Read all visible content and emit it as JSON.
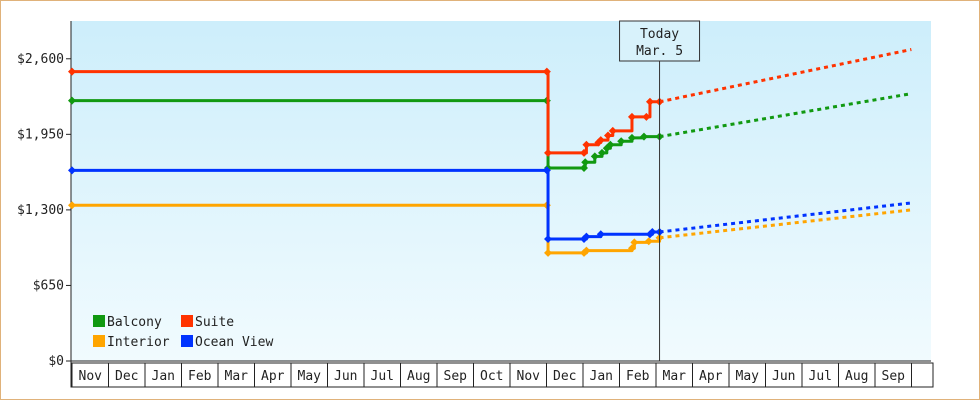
{
  "chart_data": {
    "type": "line",
    "title": "",
    "xlabel": "",
    "ylabel": "",
    "ylim": [
      0,
      2925
    ],
    "y_ticks": [
      {
        "value": 0,
        "label": "$0"
      },
      {
        "value": 650,
        "label": "$650"
      },
      {
        "value": 1300,
        "label": "$1,300"
      },
      {
        "value": 1950,
        "label": "$1,950"
      },
      {
        "value": 2600,
        "label": "$2,600"
      }
    ],
    "x_range": [
      "2023-11-01",
      "2025-10-01"
    ],
    "x_ticks": [
      "Nov",
      "Dec",
      "Jan",
      "Feb",
      "Mar",
      "Apr",
      "May",
      "Jun",
      "Jul",
      "Aug",
      "Sep",
      "Oct",
      "Nov",
      "Dec",
      "Jan",
      "Feb",
      "Mar",
      "Apr",
      "May",
      "Jun",
      "Jul",
      "Aug",
      "Sep"
    ],
    "grid": false,
    "legend_position": "bottom-left",
    "today": {
      "title": "Today",
      "label": "Mar. 5",
      "date": "2025-03-05"
    },
    "series": [
      {
        "name": "Balcony",
        "color": "#119911",
        "points": [
          [
            "2023-11-01",
            2240
          ],
          [
            "2024-12-01",
            2240
          ],
          [
            "2024-12-02",
            1660
          ],
          [
            "2025-01-01",
            1660
          ],
          [
            "2025-01-02",
            1710
          ],
          [
            "2025-01-10",
            1760
          ],
          [
            "2025-01-16",
            1790
          ],
          [
            "2025-01-20",
            1830
          ],
          [
            "2025-01-23",
            1860
          ],
          [
            "2025-02-01",
            1890
          ],
          [
            "2025-02-10",
            1920
          ],
          [
            "2025-02-20",
            1930
          ],
          [
            "2025-03-05",
            1930
          ]
        ],
        "forecast": [
          [
            "2025-03-05",
            1930
          ],
          [
            "2025-10-01",
            2300
          ]
        ]
      },
      {
        "name": "Suite",
        "color": "#ff3300",
        "points": [
          [
            "2023-11-01",
            2490
          ],
          [
            "2024-12-01",
            2490
          ],
          [
            "2024-12-02",
            1790
          ],
          [
            "2025-01-01",
            1790
          ],
          [
            "2025-01-03",
            1860
          ],
          [
            "2025-01-13",
            1880
          ],
          [
            "2025-01-15",
            1900
          ],
          [
            "2025-01-21",
            1940
          ],
          [
            "2025-01-25",
            1980
          ],
          [
            "2025-02-10",
            2100
          ],
          [
            "2025-02-22",
            2100
          ],
          [
            "2025-02-25",
            2230
          ],
          [
            "2025-03-05",
            2230
          ]
        ],
        "forecast": [
          [
            "2025-03-05",
            2230
          ],
          [
            "2025-10-01",
            2680
          ]
        ]
      },
      {
        "name": "Interior",
        "color": "#ffa500",
        "points": [
          [
            "2023-11-01",
            1340
          ],
          [
            "2024-12-01",
            1340
          ],
          [
            "2024-12-02",
            930
          ],
          [
            "2025-01-01",
            930
          ],
          [
            "2025-01-03",
            950
          ],
          [
            "2025-02-10",
            970
          ],
          [
            "2025-02-12",
            1020
          ],
          [
            "2025-02-24",
            1030
          ],
          [
            "2025-03-05",
            1060
          ]
        ],
        "forecast": [
          [
            "2025-03-05",
            1060
          ],
          [
            "2025-10-01",
            1300
          ]
        ]
      },
      {
        "name": "Ocean View",
        "color": "#0033ff",
        "points": [
          [
            "2023-11-01",
            1640
          ],
          [
            "2024-12-01",
            1640
          ],
          [
            "2024-12-02",
            1050
          ],
          [
            "2025-01-01",
            1050
          ],
          [
            "2025-01-03",
            1070
          ],
          [
            "2025-01-15",
            1090
          ],
          [
            "2025-02-25",
            1090
          ],
          [
            "2025-02-27",
            1110
          ],
          [
            "2025-03-05",
            1110
          ]
        ],
        "forecast": [
          [
            "2025-03-05",
            1110
          ],
          [
            "2025-10-01",
            1360
          ]
        ]
      }
    ]
  }
}
